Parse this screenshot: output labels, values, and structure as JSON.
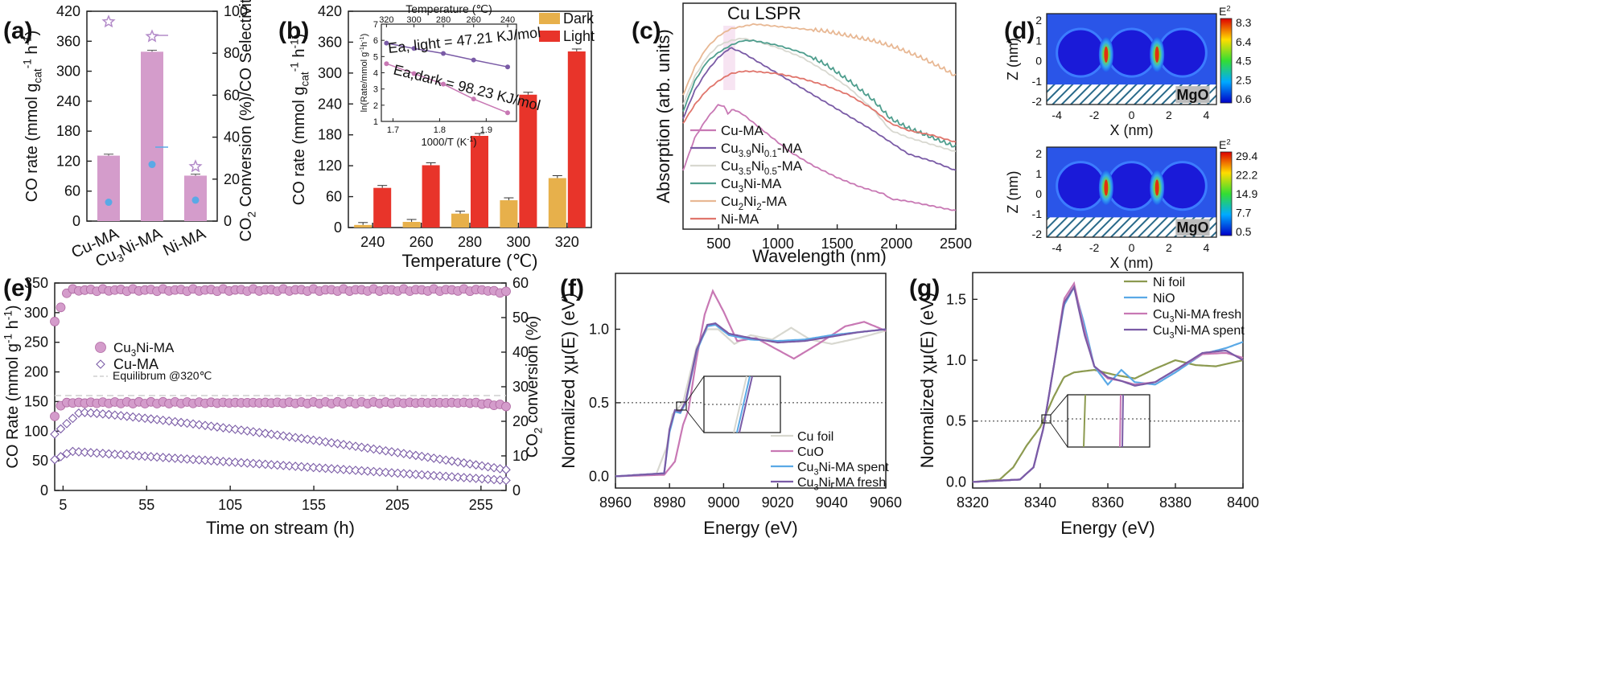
{
  "colors": {
    "pink": "#c878b4",
    "pinkFill": "#d49ccb",
    "purple": "#7a5ba6",
    "lightgray": "#d8d8d0",
    "teal": "#4f9e8e",
    "peach": "#e8b894",
    "salmon": "#e0756c",
    "dark": "#e7b04b",
    "light": "#e8342a",
    "lightblue": "#5aa9e6",
    "olive": "#8c9a50",
    "star": "#b38bc9"
  },
  "chart_data": [
    {
      "panel": "a",
      "label": "(a)",
      "type": "bar",
      "categories": [
        "Cu-MA",
        "Cu3Ni-MA",
        "Ni-MA"
      ],
      "category_sub": [
        "",
        "3",
        ""
      ],
      "category_parts": [
        [
          "Cu-MA"
        ],
        [
          "Cu",
          "Ni-MA"
        ],
        [
          "Ni-MA"
        ]
      ],
      "values": [
        131,
        339,
        91
      ],
      "errors": [
        3,
        3,
        3
      ],
      "selectivity": [
        95,
        88,
        26
      ],
      "conversion": [
        9,
        27,
        10
      ],
      "ylim": [
        0,
        420
      ],
      "yticks": [
        0,
        60,
        120,
        180,
        240,
        300,
        360,
        420
      ],
      "ylabel_main": "CO rate (mmol g",
      "ylabel_sub": "cat",
      "ylabel_sup1": "-1",
      "ylabel_mid": " h",
      "ylabel_sup2": "-1",
      "ylabel_end": ")",
      "y2lim": [
        0,
        100
      ],
      "y2ticks": [
        0,
        20,
        40,
        60,
        80,
        100
      ],
      "y2label_a": "CO",
      "y2label_sub": "2",
      "y2label_b": " Conversion (%)/CO Selectivity"
    },
    {
      "panel": "b",
      "label": "(b)",
      "type": "bar",
      "categories": [
        "240",
        "260",
        "280",
        "300",
        "320"
      ],
      "series": [
        {
          "name": "Dark",
          "values": [
            5,
            11,
            27,
            53,
            96
          ]
        },
        {
          "name": "Light",
          "values": [
            77,
            121,
            178,
            258,
            342
          ]
        }
      ],
      "ylim": [
        0,
        420
      ],
      "yticks": [
        0,
        60,
        120,
        180,
        240,
        300,
        360,
        420
      ],
      "xlabel": "Temperature (℃)",
      "ylabel_main": "CO rate (mmol g",
      "ylabel_sub": "cat",
      "ylabel_sup1": "-1",
      "ylabel_mid": " h",
      "ylabel_sup2": "-1",
      "ylabel_end": ")",
      "inset": {
        "xlabel": "1000/T (K",
        "xlabel_sup": "-1",
        "xlabel_end": ")",
        "toplabel": "Temperature (℃)",
        "top_ticks": [
          "320",
          "300",
          "280",
          "260",
          "240"
        ],
        "xticks": [
          "1.7",
          "1.8",
          "1.9"
        ],
        "ylabel": "ln(Rate/mmol g",
        "ylabel_sup1": "-1",
        "ylabel_mid": "h",
        "ylabel_sup2": "-1",
        "ylabel_end": ")",
        "yticks": [
          1,
          2,
          3,
          4,
          5,
          6,
          7
        ],
        "ylim": [
          1,
          7
        ],
        "xlim": [
          1.675,
          1.965
        ],
        "light_x": [
          1.686,
          1.745,
          1.808,
          1.873,
          1.946
        ],
        "light_y": [
          5.83,
          5.5,
          5.19,
          4.79,
          4.36
        ],
        "dark_x": [
          1.686,
          1.745,
          1.808,
          1.873,
          1.946
        ],
        "dark_y": [
          4.56,
          3.95,
          3.3,
          2.38,
          1.53
        ],
        "light_text": "Ea, light = 47.21 KJ/mol",
        "dark_text": "Ea,dark = 98.23 KJ/mol"
      }
    },
    {
      "panel": "c",
      "label": "(c)",
      "type": "line",
      "xlabel": "Wavelength (nm)",
      "ylabel": "Absorption (arb. units)",
      "xlim": [
        200,
        2500
      ],
      "xticks": [
        500,
        1000,
        1500,
        2000,
        2500
      ],
      "annotation": "Cu LSPR",
      "series": [
        {
          "name": "Cu-MA",
          "x": [
            200,
            300,
            400,
            500,
            550,
            580,
            620,
            700,
            800,
            900,
            1100,
            1300,
            1500,
            1700,
            1900,
            1950,
            2100,
            2300,
            2500
          ],
          "y": [
            0.38,
            0.52,
            0.6,
            0.66,
            0.65,
            0.62,
            0.64,
            0.62,
            0.58,
            0.54,
            0.46,
            0.4,
            0.35,
            0.31,
            0.28,
            0.26,
            0.25,
            0.23,
            0.21
          ]
        },
        {
          "name": "Cu3.9Ni0.1-MA",
          "x": [
            200,
            300,
            400,
            500,
            600,
            700,
            800,
            1000,
            1200,
            1400,
            1600,
            1800,
            1950,
            2100,
            2300,
            2500
          ],
          "y": [
            0.6,
            0.72,
            0.8,
            0.86,
            0.9,
            0.88,
            0.85,
            0.79,
            0.73,
            0.67,
            0.61,
            0.55,
            0.5,
            0.45,
            0.42,
            0.38
          ]
        },
        {
          "name": "Cu3.5Ni0.5-MA",
          "x": [
            200,
            300,
            400,
            500,
            600,
            700,
            800,
            1000,
            1200,
            1400,
            1600,
            1800,
            1950,
            2100,
            2300,
            2500
          ],
          "y": [
            0.66,
            0.78,
            0.86,
            0.91,
            0.93,
            0.94,
            0.93,
            0.9,
            0.86,
            0.8,
            0.73,
            0.64,
            0.55,
            0.52,
            0.49,
            0.46
          ]
        },
        {
          "name": "Cu3Ni-MA",
          "x": [
            200,
            300,
            400,
            500,
            600,
            700,
            800,
            1000,
            1200,
            1400,
            1600,
            1800,
            1950,
            2100,
            2300,
            2500
          ],
          "y": [
            0.63,
            0.76,
            0.84,
            0.88,
            0.91,
            0.93,
            0.93,
            0.91,
            0.88,
            0.83,
            0.76,
            0.68,
            0.6,
            0.56,
            0.52,
            0.48
          ]
        },
        {
          "name": "Cu2Ni2-MA",
          "x": [
            200,
            300,
            400,
            500,
            600,
            700,
            800,
            1000,
            1200,
            1400,
            1600,
            1800,
            2000,
            2200,
            2400,
            2500
          ],
          "y": [
            0.7,
            0.82,
            0.9,
            0.95,
            0.98,
            0.99,
            1.0,
            0.99,
            0.98,
            0.97,
            0.95,
            0.93,
            0.9,
            0.86,
            0.81,
            0.78
          ]
        },
        {
          "name": "Ni-MA",
          "x": [
            200,
            300,
            400,
            500,
            600,
            700,
            800,
            1000,
            1200,
            1400,
            1600,
            1800,
            1950,
            2100,
            2300,
            2500
          ],
          "y": [
            0.58,
            0.66,
            0.72,
            0.76,
            0.79,
            0.8,
            0.8,
            0.79,
            0.77,
            0.74,
            0.7,
            0.64,
            0.58,
            0.55,
            0.53,
            0.5
          ]
        }
      ],
      "legend_parts": [
        [
          [
            "Cu-MA",
            ""
          ]
        ],
        [
          [
            "Cu",
            ""
          ],
          [
            "3.9",
            "sub"
          ],
          [
            "Ni",
            ""
          ],
          [
            "0.1",
            "sub"
          ],
          [
            "-MA",
            ""
          ]
        ],
        [
          [
            "Cu",
            ""
          ],
          [
            "3.5",
            "sub"
          ],
          [
            "Ni",
            ""
          ],
          [
            "0.5",
            "sub"
          ],
          [
            "-MA",
            ""
          ]
        ],
        [
          [
            "Cu",
            ""
          ],
          [
            "3",
            "sub"
          ],
          [
            "Ni-MA",
            ""
          ]
        ],
        [
          [
            "Cu",
            ""
          ],
          [
            "2",
            "sub"
          ],
          [
            "Ni",
            ""
          ],
          [
            "2",
            "sub"
          ],
          [
            "-MA",
            ""
          ]
        ],
        [
          [
            "Ni-MA",
            ""
          ]
        ]
      ]
    },
    {
      "panel": "d",
      "label": "(d)",
      "type": "heatmap",
      "maps": [
        {
          "title": "E2",
          "cbar_ticks": [
            "8.3",
            "6.4",
            "4.5",
            "2.5",
            "0.6"
          ],
          "substrate": "MgO"
        },
        {
          "title": "E2",
          "cbar_ticks": [
            "29.4",
            "22.2",
            "14.9",
            "7.7",
            "0.5"
          ],
          "substrate": "MgO"
        }
      ],
      "xlabel": "X (nm)",
      "ylabel": "Z (nm)",
      "xticks": [
        "-4",
        "-2",
        "0",
        "2",
        "4"
      ],
      "yticks": [
        "2",
        "1",
        "0",
        "-1",
        "-2"
      ]
    },
    {
      "panel": "e",
      "label": "(e)",
      "type": "scatter",
      "xlabel": "Time on stream (h)",
      "ylabel": "CO Rate (mmol g",
      "ylabel_sup1": "-1",
      "ylabel_mid": " h",
      "ylabel_sup2": "-1",
      "ylabel_end": ")",
      "y2label_a": "CO",
      "y2label_sub": "2",
      "y2label_b": " conversion (%)",
      "xlim": [
        0,
        270
      ],
      "xticks": [
        5,
        55,
        105,
        155,
        205,
        255
      ],
      "ylim": [
        0,
        350
      ],
      "yticks": [
        0,
        50,
        100,
        150,
        200,
        250,
        300,
        350
      ],
      "y2lim": [
        0,
        60
      ],
      "y2ticks": [
        0,
        10,
        20,
        30,
        40,
        50,
        60
      ],
      "equilibrium": 160,
      "equilibrium_label": "Equilibrum @320℃",
      "series": [
        {
          "name": "Cu3Ni-MA",
          "legend_main": "Cu",
          "legend_sub": "3",
          "legend_end": "Ni-MA",
          "style": "filled-circle",
          "rate_start": 285,
          "rate_plateau": 338,
          "conv_plateau": 148
        },
        {
          "name": "Cu-MA",
          "legend_main": "Cu-MA",
          "legend_sub": "",
          "legend_end": "",
          "style": "open-diamond",
          "rate_start": 95,
          "rate_peak": 132,
          "rate_end": 35,
          "conv_peak": 66,
          "conv_end": 17
        }
      ]
    },
    {
      "panel": "f",
      "label": "(f)",
      "type": "line",
      "xlabel": "Energy (eV)",
      "ylabel": "Normalized χμ(E) (eV)",
      "xlim": [
        8960,
        9060
      ],
      "xticks": [
        8960,
        8980,
        9000,
        9020,
        9040,
        9060
      ],
      "ylim": [
        -0.08,
        1.38
      ],
      "yticks": [
        0.0,
        0.5,
        1.0
      ],
      "ytick_labels": [
        "0.0",
        "0.5",
        "1.0"
      ],
      "series": [
        {
          "name": "Cu foil",
          "legend_main": "Cu foil",
          "legend_sub": "",
          "legend_end": ""
        },
        {
          "name": "CuO",
          "legend_main": "CuO",
          "legend_sub": "",
          "legend_end": ""
        },
        {
          "name": "Cu3Ni-MA spent",
          "legend_main": "Cu",
          "legend_sub": "3",
          "legend_end": "Ni-MA spent"
        },
        {
          "name": "Cu3Ni-MA fresh",
          "legend_main": "Cu",
          "legend_sub": "3",
          "legend_end": "Ni-MA fresh"
        }
      ]
    },
    {
      "panel": "g",
      "label": "(g)",
      "type": "line",
      "xlabel": "Energy (eV)",
      "ylabel": "Normalized χμ(E) (eV)",
      "xlim": [
        8320,
        8400
      ],
      "xticks": [
        8320,
        8340,
        8360,
        8380,
        8400
      ],
      "ylim": [
        -0.05,
        1.72
      ],
      "yticks": [
        0.0,
        0.5,
        1.0,
        1.5
      ],
      "ytick_labels": [
        "0.0",
        "0.5",
        "1.0",
        "1.5"
      ],
      "series": [
        {
          "name": "Ni foil",
          "legend_main": "Ni foil",
          "legend_sub": "",
          "legend_end": ""
        },
        {
          "name": "NiO",
          "legend_main": "NiO",
          "legend_sub": "",
          "legend_end": ""
        },
        {
          "name": "Cu3Ni-MA fresh",
          "legend_main": "Cu",
          "legend_sub": "3",
          "legend_end": "Ni-MA fresh"
        },
        {
          "name": "Cu3Ni-MA spent",
          "legend_main": "Cu",
          "legend_sub": "3",
          "legend_end": "Ni-MA spent"
        }
      ]
    }
  ]
}
